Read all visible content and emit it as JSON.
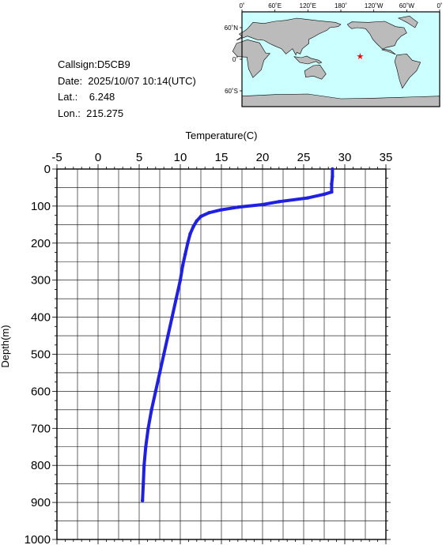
{
  "station": {
    "callsign": "Callsign:D5CB9",
    "date": "Date:  2025/10/07 10:14(UTC)",
    "lat": "Lat.:    6.248",
    "lon": "Lon.:  215.275"
  },
  "map": {
    "lon_labels": [
      "0˚",
      "60˚E",
      "120˚E",
      "180˚",
      "120˚W",
      "60˚W",
      "0˚"
    ],
    "lat_labels": [
      "60˚N",
      "0˚",
      "60˚S"
    ],
    "marker": {
      "lon": 215.275,
      "lat": 6.248,
      "symbol": "★",
      "color": "#ff0000"
    },
    "colors": {
      "ocean": "#ccffff",
      "land": "#bbbbbb",
      "coast": "#000000"
    }
  },
  "chart_data": {
    "type": "line",
    "title": "",
    "xlabel": "Temperature(C)",
    "ylabel": "Depth(m)",
    "xlim": [
      -5,
      35
    ],
    "ylim": [
      1000,
      0
    ],
    "x_ticks": [
      "-5",
      "0",
      "5",
      "10",
      "15",
      "20",
      "25",
      "30",
      "35"
    ],
    "y_ticks": [
      "0",
      "100",
      "200",
      "300",
      "400",
      "500",
      "600",
      "700",
      "800",
      "900",
      "1000"
    ],
    "grid": true,
    "series": [
      {
        "color": "#2020e0",
        "x": [
          28.5,
          28.5,
          28.4,
          28.4,
          27.5,
          25.5,
          22.0,
          20.0,
          17.0,
          15.0,
          13.5,
          12.5,
          12.0,
          11.6,
          11.2,
          10.9,
          10.6,
          10.3,
          10.0,
          9.5,
          9.0,
          8.5,
          8.0,
          7.5,
          7.0,
          6.5,
          6.1,
          5.8,
          5.6,
          5.5,
          5.4
        ],
        "y": [
          0,
          20,
          40,
          62,
          68,
          78,
          88,
          96,
          103,
          110,
          118,
          128,
          140,
          155,
          175,
          200,
          230,
          260,
          300,
          350,
          400,
          450,
          500,
          550,
          600,
          650,
          700,
          750,
          800,
          850,
          895
        ]
      }
    ]
  }
}
